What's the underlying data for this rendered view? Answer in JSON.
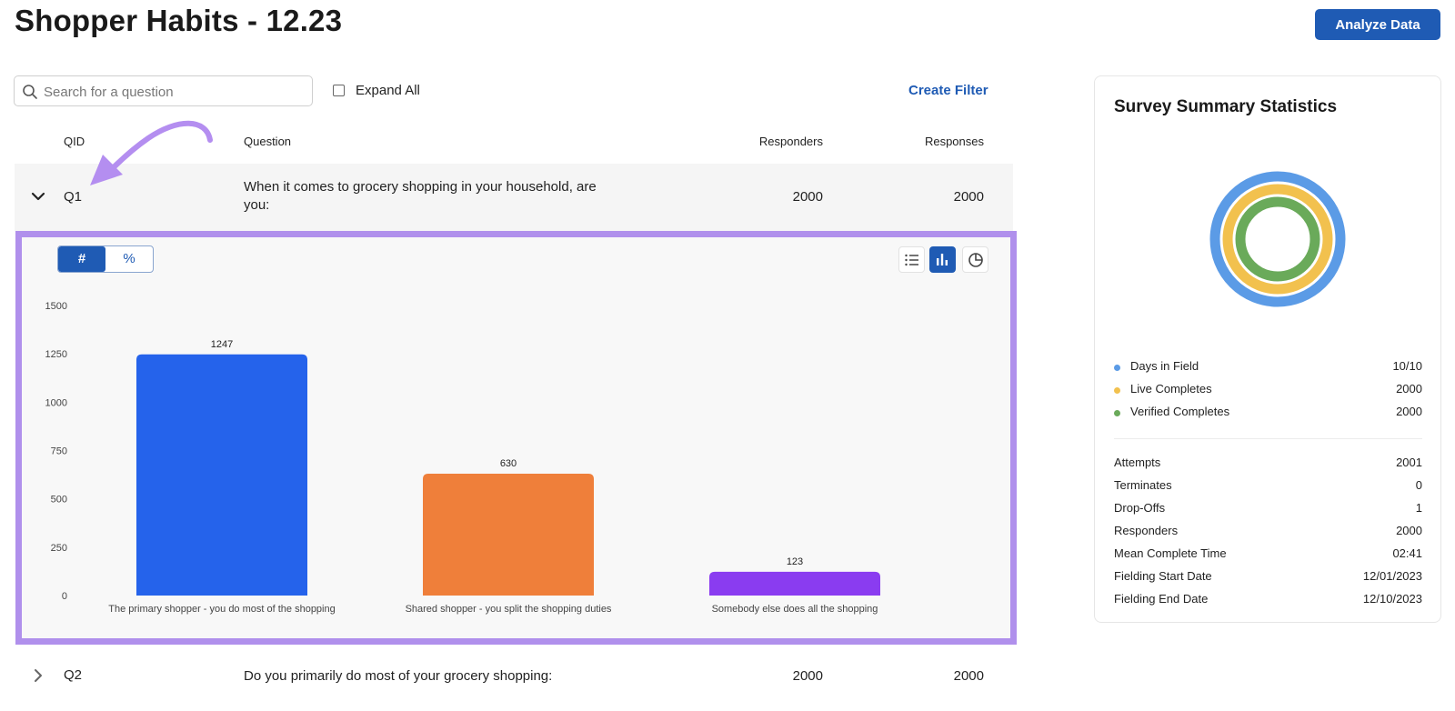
{
  "page": {
    "title": "Shopper Habits - 12.23",
    "analyze_button": "Analyze Data"
  },
  "toolbar": {
    "search_placeholder": "Search for a question",
    "expand_all_label": "Expand All",
    "expand_all_checked": false,
    "create_filter_label": "Create Filter"
  },
  "table": {
    "headers": {
      "qid": "QID",
      "question": "Question",
      "responders": "Responders",
      "responses": "Responses"
    },
    "rows": [
      {
        "qid": "Q1",
        "question": "When it comes to grocery shopping in your household, are you:",
        "responders": "2000",
        "responses": "2000",
        "expanded": true
      },
      {
        "qid": "Q2",
        "question": "Do you primarily do most of your grocery shopping:",
        "responders": "2000",
        "responses": "2000",
        "expanded": false
      }
    ]
  },
  "chart_panel": {
    "toggle": {
      "count_label": "#",
      "percent_label": "%",
      "selected": "#"
    },
    "view_buttons": {
      "list_icon": "list-icon",
      "bar_icon": "bar-chart-icon",
      "pie_icon": "pie-chart-icon",
      "selected": "bar"
    }
  },
  "chart_data": {
    "type": "bar",
    "categories": [
      "The primary shopper - you do most of the shopping",
      "Shared shopper - you split the shopping duties",
      "Somebody else does all the shopping"
    ],
    "values": [
      1247,
      630,
      123
    ],
    "data_labels": [
      "1247",
      "630",
      "123"
    ],
    "bar_colors": [
      "#2563eb",
      "#ef7f3a",
      "#8a3cf0"
    ],
    "ylim": [
      0,
      1500
    ],
    "yticks": [
      0,
      250,
      500,
      750,
      1000,
      1250,
      1500
    ],
    "title": "",
    "xlabel": "",
    "ylabel": "",
    "grid": false
  },
  "summary": {
    "title": "Survey Summary Statistics",
    "rings": [
      {
        "label": "Days in Field",
        "value": "10/10",
        "color": "#5b9be6",
        "fraction": 1.0
      },
      {
        "label": "Live Completes",
        "value": "2000",
        "color": "#f2c14e",
        "fraction": 1.0
      },
      {
        "label": "Verified Completes",
        "value": "2000",
        "color": "#6aaa5a",
        "fraction": 1.0
      }
    ],
    "stats": [
      {
        "label": "Attempts",
        "value": "2001"
      },
      {
        "label": "Terminates",
        "value": "0"
      },
      {
        "label": "Drop-Offs",
        "value": "1"
      },
      {
        "label": "Responders",
        "value": "2000"
      },
      {
        "label": "Mean Complete Time",
        "value": "02:41"
      },
      {
        "label": "Fielding Start Date",
        "value": "12/01/2023"
      },
      {
        "label": "Fielding End Date",
        "value": "12/10/2023"
      }
    ]
  },
  "colors": {
    "accent": "#1f5bb4",
    "highlight_border": "#b090ec",
    "annotation_arrow": "#b48ef0"
  }
}
